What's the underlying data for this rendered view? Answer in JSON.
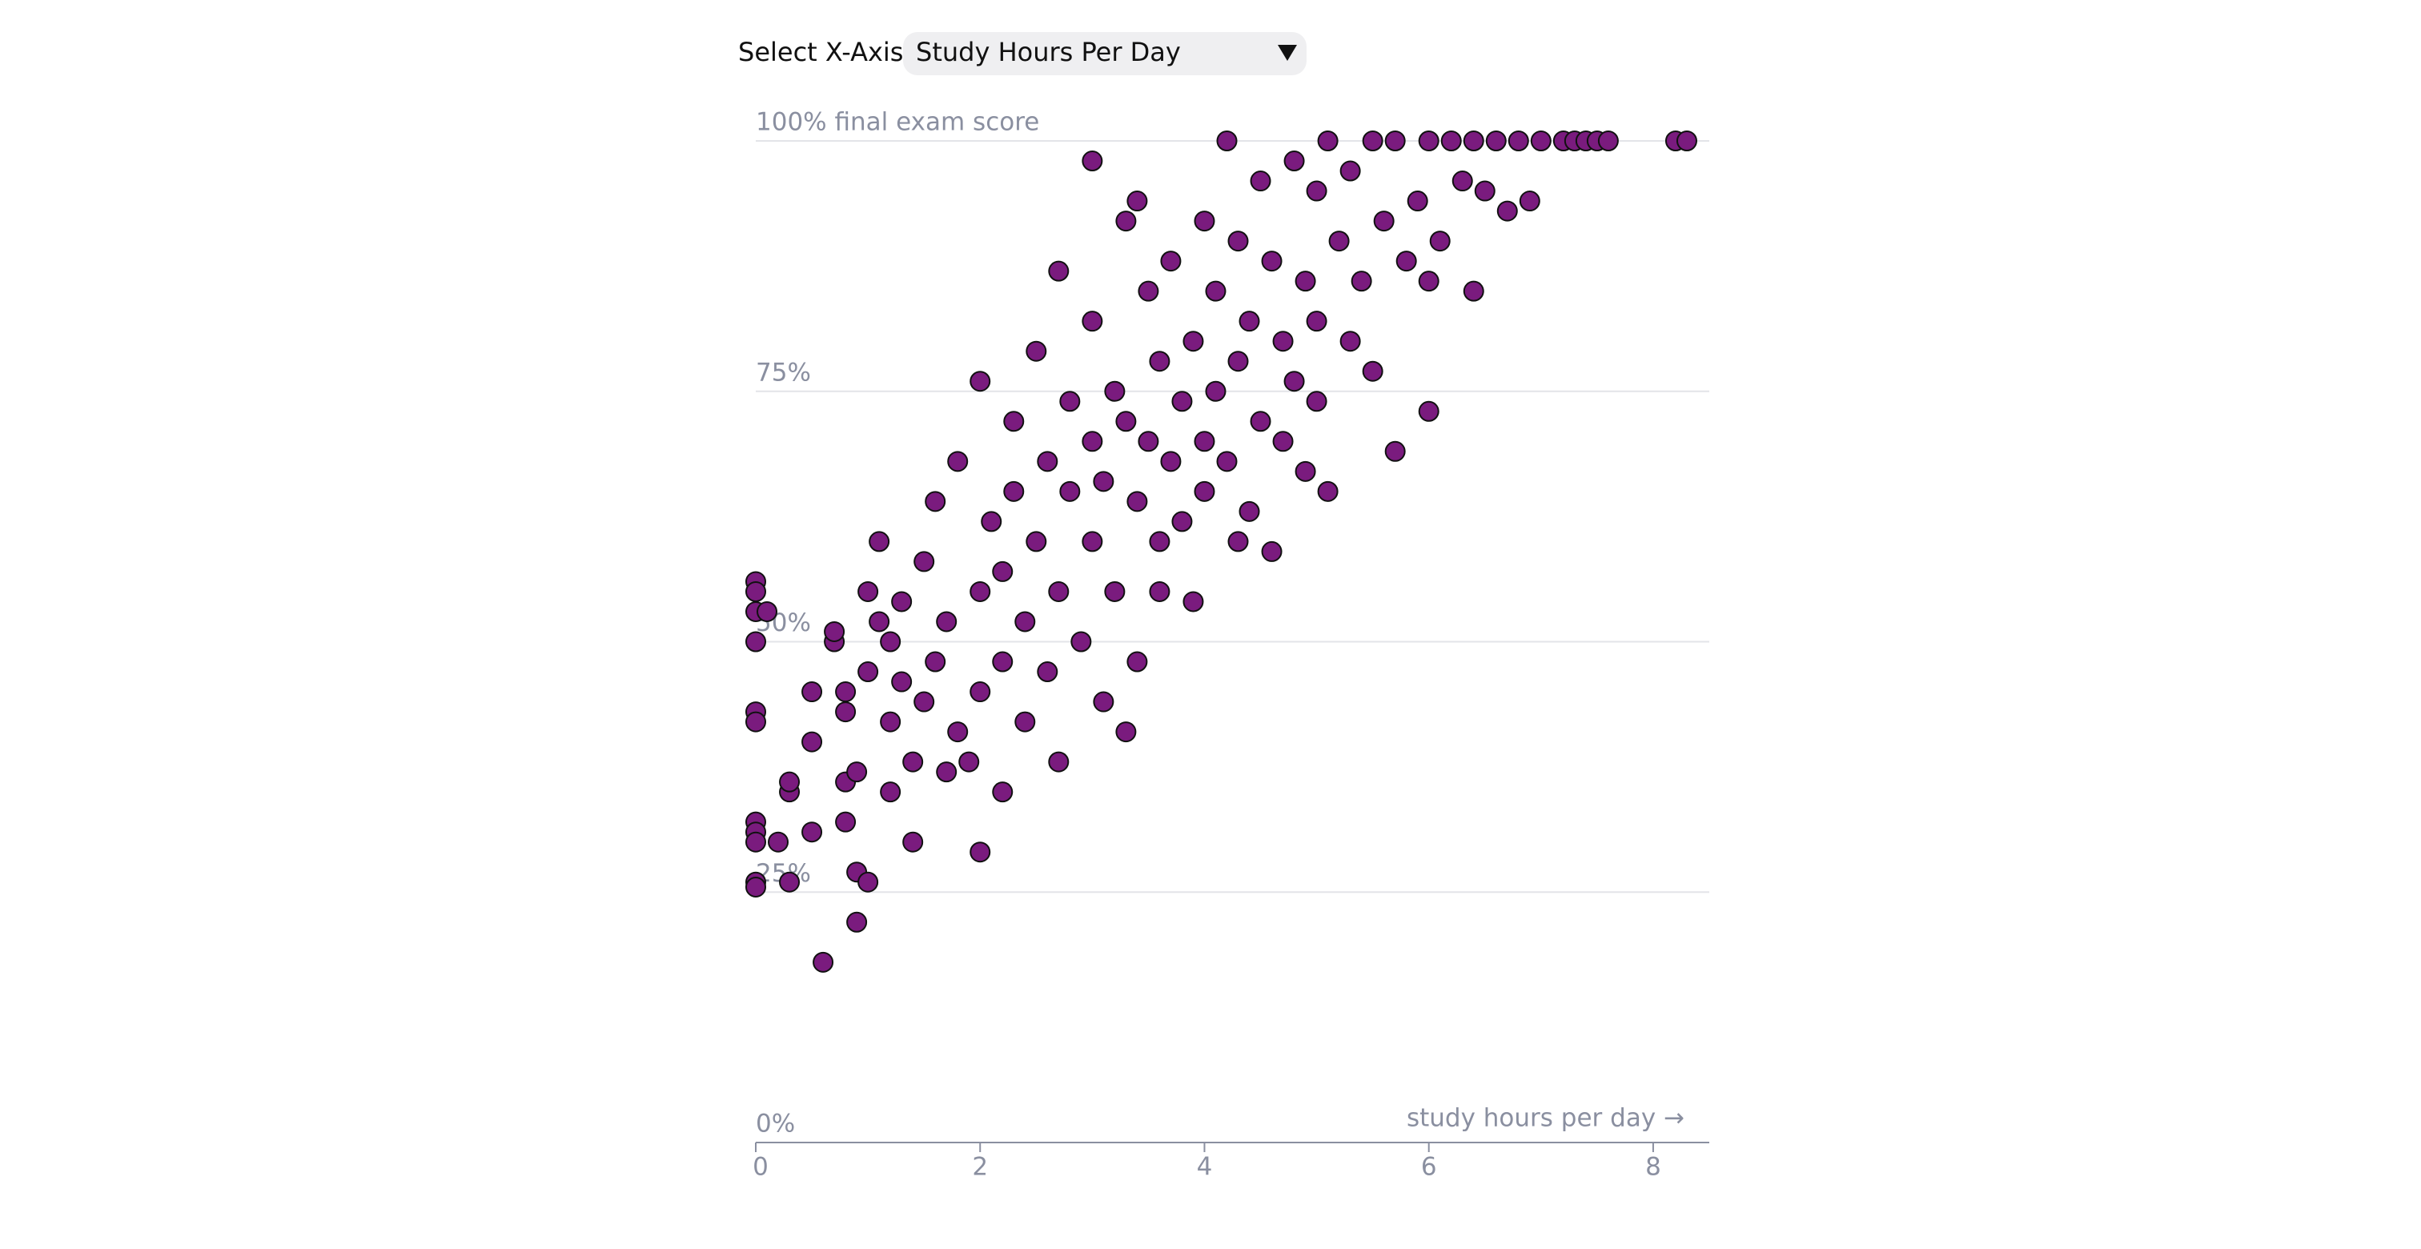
{
  "control": {
    "label": "Select X-Axis:",
    "selected": "Study Hours Per Day"
  },
  "chart_data": {
    "type": "scatter",
    "xlabel": "study hours per day →",
    "color": "#7a1b7e",
    "x": [
      0,
      0,
      0,
      0.1,
      0,
      0,
      0,
      0,
      0,
      0,
      0,
      0,
      0.3,
      0.2,
      0.3,
      0.3,
      0.5,
      0.5,
      0.5,
      0.6,
      0.7,
      0.7,
      0.8,
      0.8,
      0.8,
      0.8,
      0.9,
      0.9,
      0.9,
      1.0,
      1.0,
      1.0,
      1.1,
      1.1,
      1.2,
      1.2,
      1.2,
      1.3,
      1.3,
      1.4,
      1.4,
      1.5,
      1.5,
      1.6,
      1.6,
      1.7,
      1.7,
      1.8,
      1.8,
      1.9,
      2.0,
      2.0,
      2.0,
      2.0,
      2.1,
      2.2,
      2.2,
      2.2,
      2.3,
      2.3,
      2.4,
      2.4,
      2.5,
      2.5,
      2.6,
      2.6,
      2.7,
      2.7,
      2.7,
      2.8,
      2.8,
      2.9,
      3.0,
      3.0,
      3.0,
      3.0,
      3.1,
      3.1,
      3.2,
      3.2,
      3.3,
      3.3,
      3.3,
      3.4,
      3.4,
      3.4,
      3.5,
      3.5,
      3.6,
      3.6,
      3.6,
      3.7,
      3.7,
      3.8,
      3.8,
      3.9,
      3.9,
      4.0,
      4.0,
      4.0,
      4.1,
      4.1,
      4.2,
      4.2,
      4.3,
      4.3,
      4.3,
      4.4,
      4.4,
      4.5,
      4.5,
      4.6,
      4.6,
      4.7,
      4.7,
      4.8,
      4.8,
      4.9,
      4.9,
      5.0,
      5.0,
      5.0,
      5.1,
      5.1,
      5.2,
      5.3,
      5.3,
      5.4,
      5.5,
      5.5,
      5.6,
      5.7,
      5.7,
      5.8,
      5.9,
      6.0,
      6.0,
      6.0,
      6.1,
      6.2,
      6.3,
      6.4,
      6.4,
      6.5,
      6.6,
      6.7,
      6.8,
      6.9,
      7.0,
      7.2,
      7.3,
      7.4,
      7.5,
      7.6,
      8.2,
      8.3
    ],
    "values": [
      56,
      55,
      53,
      53,
      50,
      43,
      42,
      32,
      31,
      30,
      26,
      25.5,
      26,
      30,
      35,
      36,
      31,
      40,
      45,
      18,
      50,
      51,
      45,
      43,
      32,
      36,
      27,
      22,
      37,
      26,
      55,
      47,
      52,
      60,
      35,
      42,
      50,
      46,
      54,
      30,
      38,
      58,
      44,
      64,
      48,
      37,
      52,
      68,
      41,
      38,
      76,
      29,
      55,
      45,
      62,
      48,
      57,
      35,
      72,
      65,
      52,
      42,
      79,
      60,
      47,
      68,
      87,
      38,
      55,
      65,
      74,
      50,
      98,
      82,
      60,
      70,
      44,
      66,
      75,
      55,
      92,
      72,
      41,
      94,
      64,
      48,
      85,
      70,
      78,
      60,
      55,
      88,
      68,
      74,
      62,
      80,
      54,
      92,
      70,
      65,
      85,
      75,
      100,
      68,
      90,
      78,
      60,
      82,
      63,
      96,
      72,
      88,
      59,
      80,
      70,
      98,
      76,
      86,
      67,
      95,
      82,
      74,
      100,
      65,
      90,
      97,
      80,
      86,
      100,
      77,
      92,
      100,
      69,
      88,
      94,
      100,
      73,
      86,
      90,
      100,
      96,
      100,
      85,
      95,
      100,
      93,
      100,
      94,
      100,
      100,
      100,
      100,
      100,
      100,
      100,
      100
    ],
    "xlim": [
      0,
      8.5
    ],
    "xticks": [
      0,
      2,
      4,
      6,
      8
    ],
    "ylim": [
      0,
      100
    ],
    "yticks": [
      {
        "value": 0,
        "label": "0%"
      },
      {
        "value": 25,
        "label": "25%"
      },
      {
        "value": 50,
        "label": "50%"
      },
      {
        "value": 75,
        "label": "75%"
      },
      {
        "value": 100,
        "label": "100% final exam score"
      }
    ],
    "grid": true
  }
}
